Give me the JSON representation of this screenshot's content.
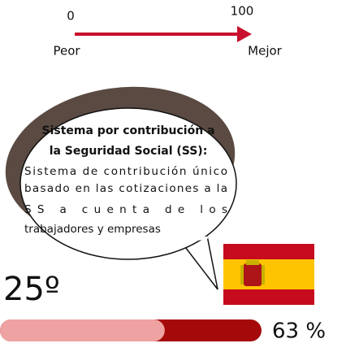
{
  "scale": {
    "min": "0",
    "max": "100",
    "left_label": "Peor",
    "right_label": "Mejor"
  },
  "bubble": {
    "title_lines": [
      "Sistema por contribución a",
      "la Seguridad Social (SS):"
    ],
    "body_lines": [
      "Sistema de contribución único",
      "basado en las cotizaciones a la",
      "SS a cuenta de los",
      "trabajadores y empresas"
    ]
  },
  "rank": "25º",
  "progress": {
    "value": 63,
    "label": "63 %"
  }
}
